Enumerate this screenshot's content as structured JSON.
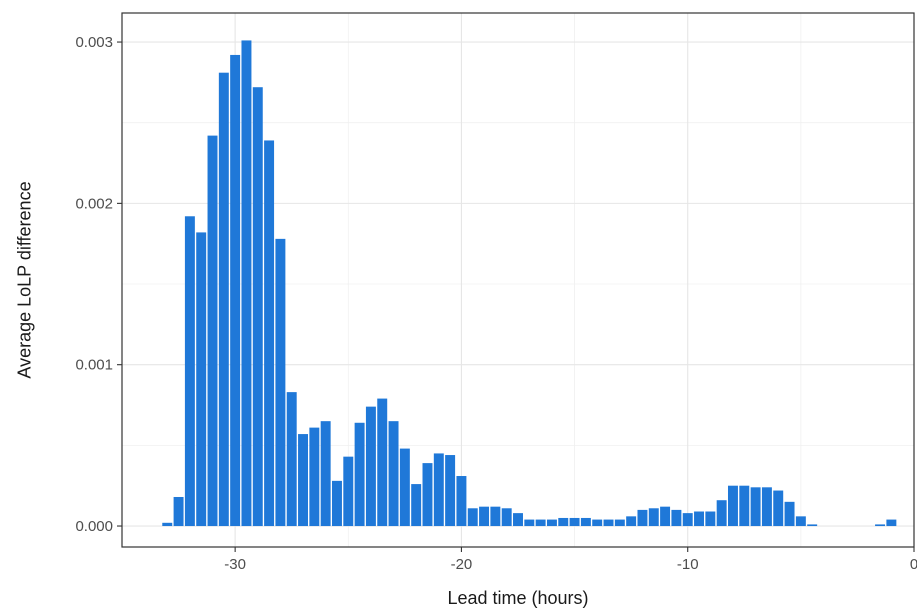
{
  "chart_data": {
    "type": "bar",
    "title": "",
    "xlabel": "Lead time (hours)",
    "ylabel": "Average LoLP difference",
    "xlim": [
      -35,
      0
    ],
    "ylim": [
      -0.00013,
      0.00318
    ],
    "grid": true,
    "legend": "none",
    "bar_color": "#1f78d8",
    "bar_width": 0.44,
    "x_ticks": [
      {
        "value": -30,
        "label": "-30"
      },
      {
        "value": -20,
        "label": "-20"
      },
      {
        "value": -10,
        "label": "-10"
      },
      {
        "value": 0,
        "label": "0"
      }
    ],
    "y_ticks": [
      {
        "value": 0.0,
        "label": "0.000"
      },
      {
        "value": 0.001,
        "label": "0.001"
      },
      {
        "value": 0.002,
        "label": "0.002"
      },
      {
        "value": 0.003,
        "label": "0.003"
      }
    ],
    "x": [
      -33.0,
      -32.5,
      -32.0,
      -31.5,
      -31.0,
      -30.5,
      -30.0,
      -29.5,
      -29.0,
      -28.5,
      -28.0,
      -27.5,
      -27.0,
      -26.5,
      -26.0,
      -25.5,
      -25.0,
      -24.5,
      -24.0,
      -23.5,
      -23.0,
      -22.5,
      -22.0,
      -21.5,
      -21.0,
      -20.5,
      -20.0,
      -19.5,
      -19.0,
      -18.5,
      -18.0,
      -17.5,
      -17.0,
      -16.5,
      -16.0,
      -15.5,
      -15.0,
      -14.5,
      -14.0,
      -13.5,
      -13.0,
      -12.5,
      -12.0,
      -11.5,
      -11.0,
      -10.5,
      -10.0,
      -9.5,
      -9.0,
      -8.5,
      -8.0,
      -7.5,
      -7.0,
      -6.5,
      -6.0,
      -5.5,
      -5.0,
      -4.5,
      -1.5,
      -1.0
    ],
    "values": [
      2e-05,
      0.00018,
      0.00192,
      0.00182,
      0.00242,
      0.00281,
      0.00292,
      0.00301,
      0.00272,
      0.00239,
      0.00178,
      0.00083,
      0.00057,
      0.00061,
      0.00065,
      0.00028,
      0.00043,
      0.00064,
      0.00074,
      0.00079,
      0.00065,
      0.00048,
      0.00026,
      0.00039,
      0.00045,
      0.00044,
      0.00031,
      0.00011,
      0.00012,
      0.00012,
      0.00011,
      8e-05,
      4e-05,
      4e-05,
      4e-05,
      5e-05,
      5e-05,
      5e-05,
      4e-05,
      4e-05,
      4e-05,
      6e-05,
      0.0001,
      0.00011,
      0.00012,
      0.0001,
      8e-05,
      9e-05,
      9e-05,
      0.00016,
      0.00025,
      0.00025,
      0.00024,
      0.00024,
      0.00022,
      0.00015,
      6e-05,
      1e-05,
      1e-05,
      4e-05
    ]
  }
}
